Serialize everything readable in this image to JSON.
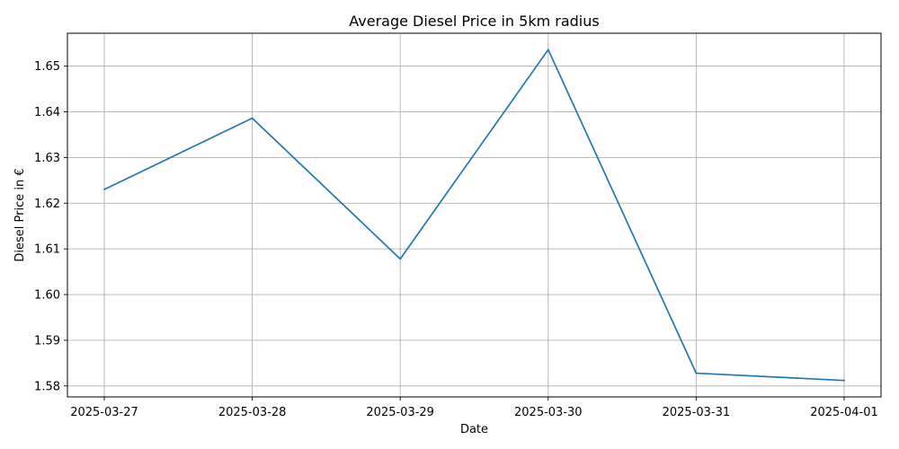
{
  "chart_data": {
    "type": "line",
    "title": "Average Diesel Price in 5km radius",
    "xlabel": "Date",
    "ylabel": "Diesel Price in €",
    "x": [
      "2025-03-27",
      "2025-03-28",
      "2025-03-29",
      "2025-03-30",
      "2025-03-31",
      "2025-04-01"
    ],
    "series": [
      {
        "values": [
          1.623,
          1.6386,
          1.6078,
          1.6536,
          1.5828,
          1.5812
        ],
        "color": "#1f77b4"
      }
    ],
    "xticks": [
      "2025-03-27",
      "2025-03-28",
      "2025-03-29",
      "2025-03-30",
      "2025-03-31",
      "2025-04-01"
    ],
    "yticks": [
      "1.58",
      "1.59",
      "1.60",
      "1.61",
      "1.62",
      "1.63",
      "1.64",
      "1.65"
    ],
    "ylim": [
      1.5776,
      1.6572
    ],
    "grid": true,
    "legend": false
  }
}
